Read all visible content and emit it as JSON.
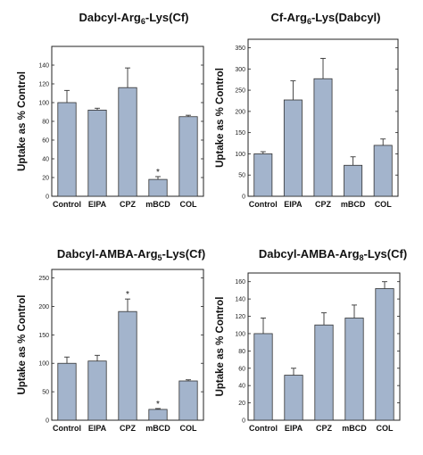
{
  "chart_data": [
    {
      "type": "bar",
      "title_parts": [
        {
          "text": "Dabcyl-Arg",
          "sub": false
        },
        {
          "text": "6",
          "sub": true
        },
        {
          "text": "-Lys(Cf)",
          "sub": false
        }
      ],
      "ylabel": "Uptake as % Control",
      "categories": [
        "Control",
        "EIPA",
        "CPZ",
        "mBCD",
        "COL"
      ],
      "values": [
        100,
        92,
        116,
        18,
        85
      ],
      "errors": [
        13,
        2,
        21,
        3,
        1.5
      ],
      "significant": [
        "",
        "",
        "",
        "*",
        ""
      ],
      "ylim": [
        0,
        160
      ],
      "yticks": [
        "0",
        "20",
        "40",
        "60",
        "80",
        "100",
        "120",
        "140"
      ],
      "ytick_values": [
        0,
        20,
        40,
        60,
        80,
        100,
        120,
        140
      ]
    },
    {
      "type": "bar",
      "title_parts": [
        {
          "text": "Cf-Arg",
          "sub": false
        },
        {
          "text": "6",
          "sub": true
        },
        {
          "text": "-Lys(Dabcyl)",
          "sub": false
        }
      ],
      "ylabel": "Uptake as % Control",
      "categories": [
        "Control",
        "EIPA",
        "CPZ",
        "mBCD",
        "COL"
      ],
      "values": [
        100,
        227,
        277,
        73,
        120
      ],
      "errors": [
        5,
        45,
        48,
        20,
        15
      ],
      "significant": [
        "",
        "",
        "",
        "",
        ""
      ],
      "ylim": [
        0,
        370
      ],
      "yticks": [
        "0",
        "50",
        "100",
        "150",
        "200",
        "250",
        "300",
        "350"
      ],
      "ytick_values": [
        0,
        50,
        100,
        150,
        200,
        250,
        300,
        350
      ]
    },
    {
      "type": "bar",
      "title_parts": [
        {
          "text": "Dabcyl-AMBA-Arg",
          "sub": false
        },
        {
          "text": "5",
          "sub": true
        },
        {
          "text": "-Lys(Cf)",
          "sub": false
        }
      ],
      "ylabel": "Uptake as % Control",
      "categories": [
        "Control",
        "EIPA",
        "CPZ",
        "mBCD",
        "COL"
      ],
      "values": [
        100,
        104,
        191,
        19,
        69
      ],
      "errors": [
        11,
        10,
        22,
        1.5,
        2
      ],
      "significant": [
        "",
        "",
        "*",
        "*",
        ""
      ],
      "ylim": [
        0,
        265
      ],
      "yticks": [
        "0",
        "50",
        "100",
        "150",
        "200",
        "250"
      ],
      "ytick_values": [
        0,
        50,
        100,
        150,
        200,
        250
      ]
    },
    {
      "type": "bar",
      "title_parts": [
        {
          "text": "Dabcyl-AMBA-Arg",
          "sub": false
        },
        {
          "text": "8",
          "sub": true
        },
        {
          "text": "-Lys(Cf)",
          "sub": false
        }
      ],
      "ylabel": "Uptake as % Control",
      "categories": [
        "Control",
        "EIPA",
        "CPZ",
        "mBCD",
        "COL"
      ],
      "values": [
        100,
        52,
        110,
        118,
        152
      ],
      "errors": [
        18,
        8,
        14,
        15,
        8
      ],
      "significant": [
        "",
        "",
        "",
        "",
        ""
      ],
      "ylim": [
        0,
        170
      ],
      "yticks": [
        "0",
        "20",
        "40",
        "60",
        "80",
        "100",
        "120",
        "140",
        "160"
      ],
      "ytick_values": [
        0,
        20,
        40,
        60,
        80,
        100,
        120,
        140,
        160
      ]
    }
  ],
  "colors": {
    "bar_fill": "#a3b4cc",
    "bar_stroke": "#333333",
    "axis": "#222222"
  }
}
